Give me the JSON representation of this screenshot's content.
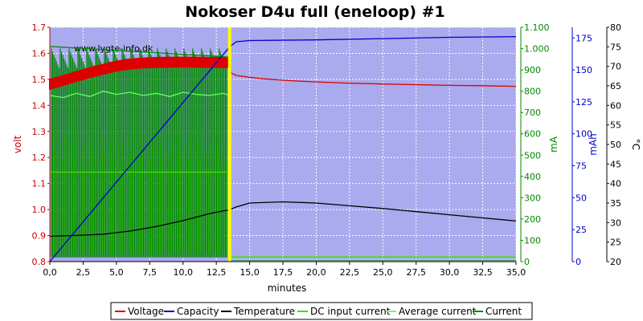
{
  "chart_data": {
    "type": "line",
    "title": "Nokoser D4u full (eneloop) #1",
    "watermark": "www.lygte-info.dk",
    "colors": {
      "plot_bg": "#aaaaee",
      "grid": "#ffffff",
      "voltage": "#dd0000",
      "capacity": "#0000cc",
      "temperature": "#000000",
      "dc_input_current": "#44dd00",
      "average_current": "#66ff66",
      "current": "#008800",
      "marker": "#ffff00"
    },
    "x_axis": {
      "label": "minutes",
      "min": 0,
      "max": 35,
      "ticks": [
        0,
        2.5,
        5,
        7.5,
        10,
        12.5,
        15,
        17.5,
        20,
        22.5,
        25,
        27.5,
        30,
        32.5,
        35
      ],
      "tick_labels": [
        "0,0",
        "2,5",
        "5,0",
        "7,5",
        "10,0",
        "12,5",
        "15,0",
        "17,5",
        "20,0",
        "22,5",
        "25,0",
        "27,5",
        "30,0",
        "32,5",
        "35,0"
      ]
    },
    "y_axes": {
      "volt": {
        "label": "volt",
        "color": "#cc0000",
        "min": 0.8,
        "max": 1.7,
        "ticks": [
          0.8,
          0.9,
          1.0,
          1.1,
          1.2,
          1.3,
          1.4,
          1.5,
          1.6,
          1.7
        ],
        "tick_labels": [
          "0.8",
          "0.9",
          "1.0",
          "1.1",
          "1.2",
          "1.3",
          "1.4",
          "1.5",
          "1.6",
          "1.7"
        ]
      },
      "ma": {
        "label": "mA",
        "color": "#008800",
        "min": 0,
        "max": 1100,
        "ticks": [
          0,
          100,
          200,
          300,
          400,
          500,
          600,
          700,
          800,
          900,
          1000,
          1100
        ],
        "tick_labels": [
          "0",
          "100",
          "200",
          "300",
          "400",
          "500",
          "600",
          "700",
          "800",
          "900",
          "1.000",
          "1.100"
        ]
      },
      "mah": {
        "label": "mAh",
        "color": "#0000cc",
        "min": 0,
        "max": 183.33,
        "ticks": [
          0,
          25,
          50,
          75,
          100,
          125,
          150,
          175
        ],
        "tick_labels": [
          "0",
          "25",
          "50",
          "75",
          "100",
          "125",
          "150",
          "175"
        ]
      },
      "temp": {
        "label": "°C",
        "color": "#000000",
        "min": 20,
        "max": 80,
        "ticks": [
          20,
          25,
          30,
          35,
          40,
          45,
          50,
          55,
          60,
          65,
          70,
          75,
          80
        ],
        "tick_labels": [
          "20",
          "25",
          "30",
          "35",
          "40",
          "45",
          "50",
          "55",
          "60",
          "65",
          "70",
          "75",
          "80"
        ]
      }
    },
    "marker_x": 13.5,
    "series": [
      {
        "name": "Voltage",
        "axis": "volt",
        "x": [
          0,
          1,
          2,
          3,
          4,
          5,
          6,
          7,
          8,
          9,
          10,
          11,
          12,
          13,
          13.5,
          13.6,
          14,
          15,
          16,
          18,
          20,
          22,
          25,
          28,
          30,
          32,
          35
        ],
        "y": [
          1.49,
          1.505,
          1.52,
          1.535,
          1.548,
          1.56,
          1.568,
          1.572,
          1.574,
          1.575,
          1.575,
          1.575,
          1.574,
          1.574,
          1.574,
          1.525,
          1.515,
          1.508,
          1.502,
          1.495,
          1.49,
          1.486,
          1.482,
          1.479,
          1.477,
          1.476,
          1.473
        ]
      },
      {
        "name": "Capacity",
        "axis": "mah",
        "x": [
          0,
          13.5,
          14,
          15,
          20,
          25,
          30,
          35
        ],
        "y": [
          0,
          168,
          172,
          173,
          173.5,
          174.5,
          175.5,
          176
        ]
      },
      {
        "name": "Temperature",
        "axis": "temp",
        "x": [
          0,
          2,
          4,
          6,
          8,
          10,
          12,
          13.5,
          14,
          15,
          17.5,
          20,
          22.5,
          25,
          27.5,
          30,
          32.5,
          35
        ],
        "y": [
          26.5,
          26.7,
          27,
          27.8,
          29,
          30.5,
          32.3,
          33.3,
          34,
          35,
          35.3,
          35,
          34.3,
          33.6,
          32.8,
          32,
          31.2,
          30.4
        ]
      },
      {
        "name": "DC input current",
        "axis": "ma",
        "x": [
          0,
          13.5,
          13.6,
          35
        ],
        "y": [
          420,
          420,
          22,
          22
        ]
      },
      {
        "name": "Average current",
        "axis": "ma",
        "x": [
          0,
          1,
          2,
          3,
          4,
          5,
          6,
          7,
          8,
          9,
          10,
          11,
          12,
          13,
          13.5,
          13.6,
          35
        ],
        "y": [
          780,
          770,
          790,
          775,
          800,
          785,
          795,
          780,
          790,
          775,
          795,
          785,
          780,
          790,
          780,
          10,
          10
        ]
      },
      {
        "name": "Current",
        "axis": "ma",
        "x": [
          0,
          13.5,
          13.6,
          35
        ],
        "y": [
          1010,
          960,
          8,
          8
        ]
      }
    ],
    "legend": {
      "position": "bottom",
      "entries": [
        "Voltage",
        "Capacity",
        "Temperature",
        "DC input current",
        "Average current",
        "Current"
      ]
    },
    "grid": true
  }
}
